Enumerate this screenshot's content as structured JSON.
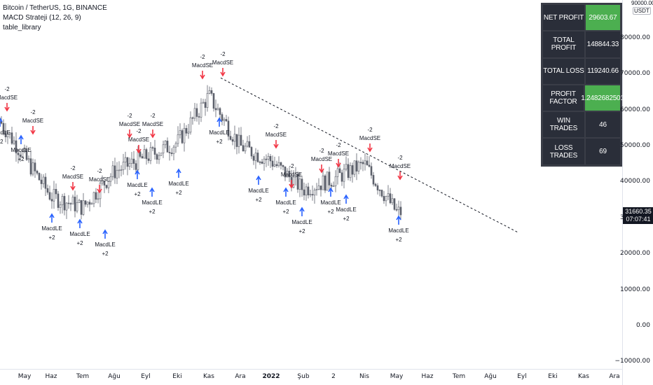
{
  "legend": {
    "symbol": "Bitcoin / TetherUS, 1G, BINANCE",
    "indicator": "MACD Strateji (12, 26, 9)",
    "library": "table_library"
  },
  "price_scale": {
    "unit_top": "90000.00)",
    "unit": "USDT",
    "ticks": [
      "80000.00",
      "70000.00",
      "60000.00",
      "50000.00",
      "40000.00",
      "30000.00",
      "20000.00",
      "10000.00",
      "0.00",
      "−10000.00"
    ],
    "last_price": "31660.35",
    "countdown": "07:07:41"
  },
  "time_scale": {
    "ticks": [
      {
        "label": "May",
        "bold": false
      },
      {
        "label": "Haz",
        "bold": false
      },
      {
        "label": "Tem",
        "bold": false
      },
      {
        "label": "Ağu",
        "bold": false
      },
      {
        "label": "Eyl",
        "bold": false
      },
      {
        "label": "Eki",
        "bold": false
      },
      {
        "label": "Kas",
        "bold": false
      },
      {
        "label": "Ara",
        "bold": false
      },
      {
        "label": "2022",
        "bold": true
      },
      {
        "label": "Şub",
        "bold": false
      },
      {
        "label": "2",
        "bold": false
      },
      {
        "label": "Nis",
        "bold": false
      },
      {
        "label": "May",
        "bold": false
      },
      {
        "label": "Haz",
        "bold": false
      },
      {
        "label": "Tem",
        "bold": false
      },
      {
        "label": "Ağu",
        "bold": false
      },
      {
        "label": "Eyl",
        "bold": false
      },
      {
        "label": "Eki",
        "bold": false
      },
      {
        "label": "Kas",
        "bold": false
      },
      {
        "label": "Ara",
        "bold": false
      }
    ]
  },
  "stats": [
    {
      "label": "NET PROFIT",
      "value": "29603.67",
      "highlight": true
    },
    {
      "label": "TOTAL PROFIT",
      "value": "148844.33",
      "highlight": false
    },
    {
      "label": "TOTAL LOSS",
      "value": "119240.66",
      "highlight": false
    },
    {
      "label": "PROFIT FACTOR",
      "value": "1.2482682501",
      "highlight": true
    },
    {
      "label": "WIN TRADES",
      "value": "46",
      "highlight": false
    },
    {
      "label": "LOSS TRADES",
      "value": "69",
      "highlight": false
    }
  ],
  "signals": {
    "short_name": "MacdSE",
    "short_qty": "-2",
    "long_name": "MacdLE",
    "long_qty": "+2"
  },
  "colors": {
    "short": "#f23645",
    "long": "#2962ff",
    "table_bg": "#2a2e39",
    "table_green": "#4caf50",
    "candle": "#5d606b"
  },
  "chart_data": {
    "type": "line",
    "xlabel": "",
    "ylabel": "",
    "ylim": [
      -10000,
      90000
    ],
    "x": [
      "May",
      "Haz",
      "Tem",
      "Ağu",
      "Eyl",
      "Eki",
      "Kas",
      "Ara",
      "2022",
      "Şub",
      "2",
      "Nis",
      "May"
    ],
    "series": [
      {
        "values": [
          57000,
          36000,
          33000,
          43000,
          47000,
          51000,
          64000,
          50000,
          46000,
          38000,
          41000,
          45000,
          31660
        ]
      }
    ],
    "trendline": {
      "from": [
        69000,
        "Kas"
      ],
      "to": [
        26000,
        "Eki"
      ],
      "style": "dotted"
    }
  }
}
